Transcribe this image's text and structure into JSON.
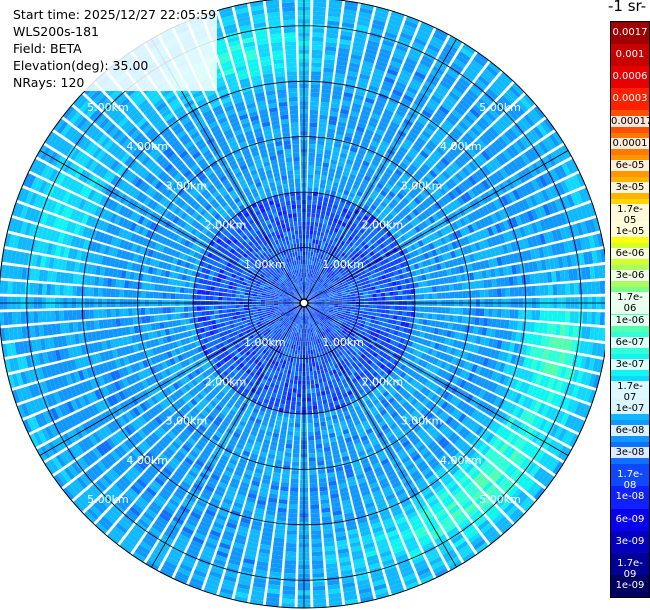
{
  "info": {
    "start_time": "Start time: 2025/12/27 22:05:59",
    "instrument": "WLS200s-181",
    "field": "Field: BETA",
    "elevation": "Elevation(deg): 35.00",
    "nrays": "NRays: 120"
  },
  "colorbar": {
    "units_label": "-1 sr-",
    "labels": [
      "0.0017",
      "0.001",
      "0.0006",
      "0.0003",
      "0.00017",
      "0.0001",
      "6e-05",
      "3e-05",
      "1.7e-05",
      "1e-05",
      "6e-06",
      "3e-06",
      "1.7e-06",
      "1e-06",
      "6e-07",
      "3e-07",
      "1.7e-07",
      "1e-07",
      "6e-08",
      "3e-08",
      "1.7e-08",
      "1e-08",
      "6e-09",
      "3e-09",
      "1.7e-09",
      "1e-09"
    ],
    "colors": [
      "#a00000",
      "#c80000",
      "#e60000",
      "#ff2000",
      "#ff5000",
      "#ff7800",
      "#ff9600",
      "#ffb400",
      "#ffd700",
      "#ffff00",
      "#d2ff30",
      "#a8ff60",
      "#7aff8a",
      "#55ffb0",
      "#30ffd8",
      "#10f5f0",
      "#10d8ff",
      "#10b8ff",
      "#1098ff",
      "#1070ff",
      "#1048ff",
      "#1020ff",
      "#0a00f0",
      "#0500c0",
      "#000096",
      "#000064"
    ]
  },
  "chart_data": {
    "type": "heatmap",
    "projection": "polar (PPI scan)",
    "rays": 120,
    "range_rings_km": [
      1,
      2,
      3,
      4,
      5
    ],
    "ring_labels": [
      "1.00km",
      "2.00km",
      "3.00km",
      "4.00km",
      "5.00km"
    ],
    "max_range_km": 5.5,
    "spokes_deg": [
      0,
      30,
      60,
      90,
      120,
      150,
      180,
      210,
      240,
      270,
      300,
      330
    ],
    "grid": true,
    "colormap": "log10 backscatter, 1e-09 to 0.0017"
  }
}
